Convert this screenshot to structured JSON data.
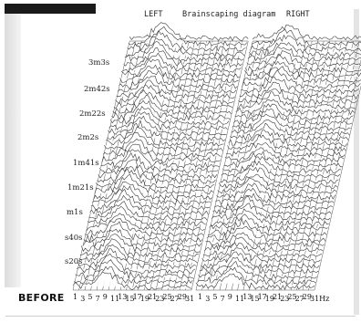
{
  "header": {
    "left": "LEFT",
    "title": "Brainscaping diagram",
    "right": "RIGHT"
  },
  "footer": {
    "before_label": "BEFORE"
  },
  "chart_data": {
    "type": "area",
    "title": "Brainscaping diagram",
    "panels": [
      "LEFT",
      "RIGHT"
    ],
    "time_labels": [
      "3m3s",
      "2m42s",
      "2m22s",
      "2m2s",
      "1m41s",
      "1m21s",
      "m1s",
      "s40s",
      "s20s"
    ],
    "x_tick_labels": [
      "1",
      "3",
      "5",
      "7",
      "9",
      "11",
      "13",
      "15",
      "17",
      "19",
      "21",
      "23",
      "25",
      "27",
      "29",
      "31",
      "1",
      "3",
      "5",
      "7",
      "9",
      "11",
      "13",
      "15",
      "17",
      "19",
      "21",
      "23",
      "25",
      "27",
      "29",
      "31Hz"
    ],
    "frequency_unit": "Hz",
    "frequency_range": [
      1,
      31
    ],
    "trace_count": 48,
    "grid": true,
    "colors": {
      "trace": "#2a2a2a",
      "grid": "#555555"
    }
  }
}
